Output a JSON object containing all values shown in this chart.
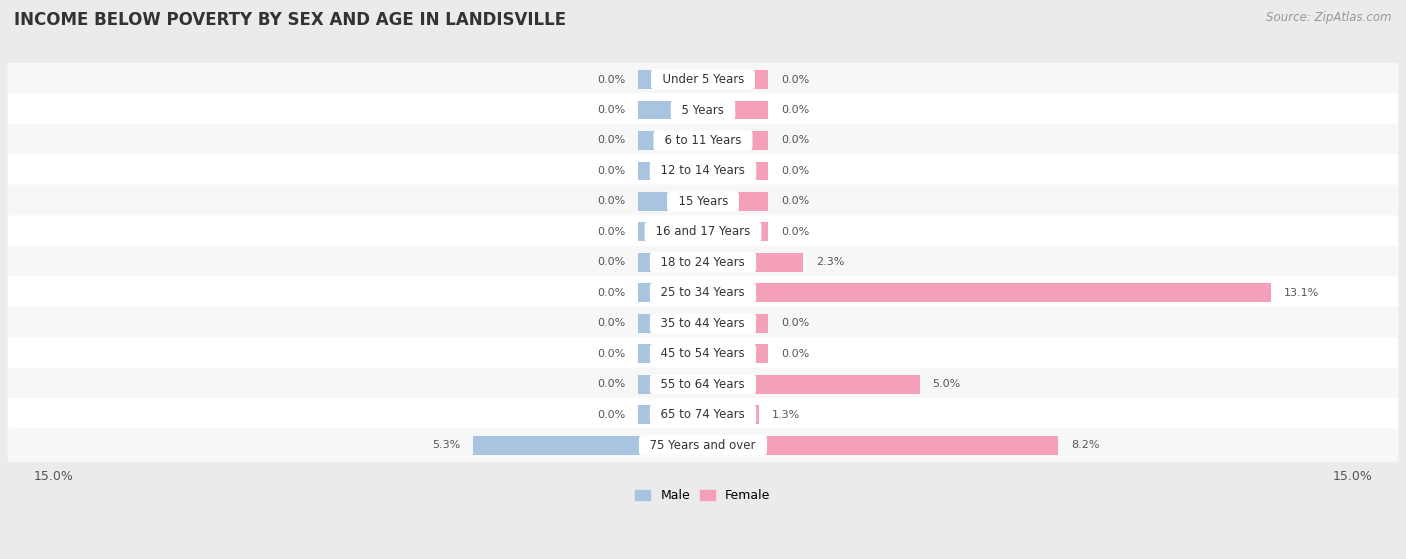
{
  "title": "INCOME BELOW POVERTY BY SEX AND AGE IN LANDISVILLE",
  "source": "Source: ZipAtlas.com",
  "categories": [
    "Under 5 Years",
    "5 Years",
    "6 to 11 Years",
    "12 to 14 Years",
    "15 Years",
    "16 and 17 Years",
    "18 to 24 Years",
    "25 to 34 Years",
    "35 to 44 Years",
    "45 to 54 Years",
    "55 to 64 Years",
    "65 to 74 Years",
    "75 Years and over"
  ],
  "male": [
    0.0,
    0.0,
    0.0,
    0.0,
    0.0,
    0.0,
    0.0,
    0.0,
    0.0,
    0.0,
    0.0,
    0.0,
    5.3
  ],
  "female": [
    0.0,
    0.0,
    0.0,
    0.0,
    0.0,
    0.0,
    2.3,
    13.1,
    0.0,
    0.0,
    5.0,
    1.3,
    8.2
  ],
  "male_color": "#a8c4e0",
  "female_color": "#f4a0b8",
  "male_label": "Male",
  "female_label": "Female",
  "xlim": 15.0,
  "min_stub": 1.5,
  "background_color": "#ebebeb",
  "row_bg_even": "#f7f7f7",
  "row_bg_odd": "#ffffff",
  "title_fontsize": 12,
  "source_fontsize": 8.5,
  "axis_label_fontsize": 9,
  "bar_label_fontsize": 8,
  "cat_label_fontsize": 8.5
}
